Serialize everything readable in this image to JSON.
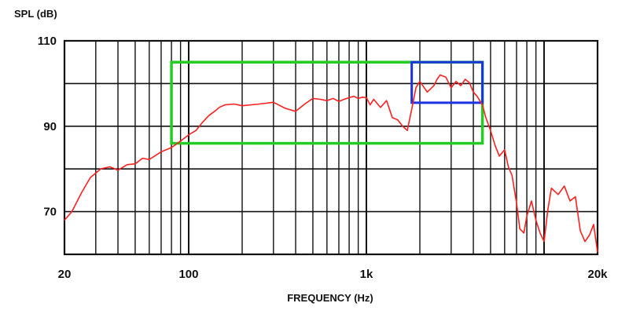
{
  "chart_data": {
    "type": "line",
    "title": "",
    "xlabel": "FREQUENCY (Hz)",
    "ylabel": "SPL (dB)",
    "x_scale": "log",
    "xlim": [
      20,
      20000
    ],
    "ylim": [
      60,
      110
    ],
    "grid": true,
    "x_ticks": [
      {
        "value": 20,
        "label": "20"
      },
      {
        "value": 100,
        "label": "100"
      },
      {
        "value": 1000,
        "label": "1k"
      },
      {
        "value": 20000,
        "label": "20k"
      }
    ],
    "y_ticks": [
      {
        "value": 110,
        "label": "110"
      },
      {
        "value": 90,
        "label": "90"
      },
      {
        "value": 70,
        "label": "70"
      }
    ],
    "colors": {
      "curve": "#ff2020",
      "grid": "#111111",
      "box_wide": "#22cc22",
      "box_narrow": "#1a33dd"
    },
    "series": [
      {
        "x": [
          20,
          22,
          25,
          28,
          32,
          36,
          40,
          45,
          50,
          55,
          60,
          70,
          80,
          90,
          100,
          110,
          120,
          130,
          140,
          150,
          160,
          180,
          200,
          250,
          300,
          350,
          400,
          450,
          500,
          550,
          600,
          650,
          700,
          750,
          800,
          850,
          900,
          950,
          1000,
          1050,
          1100,
          1200,
          1300,
          1400,
          1500,
          1600,
          1700,
          1800,
          1900,
          2000,
          2200,
          2400,
          2500,
          2600,
          2800,
          3000,
          3200,
          3400,
          3600,
          3800,
          4000,
          4200,
          4500,
          4700,
          5000,
          5300,
          5600,
          6000,
          6300,
          6600,
          7000,
          7300,
          7700,
          8000,
          8500,
          9000,
          9500,
          10000,
          10500,
          11000,
          12000,
          13000,
          14000,
          15000,
          16000,
          17000,
          18000,
          19000,
          20000
        ],
        "y": [
          68,
          70,
          74.5,
          78,
          80,
          80.5,
          79.7,
          81,
          81.2,
          82.5,
          82.2,
          84,
          85,
          86.5,
          88,
          89,
          91,
          92.5,
          93.5,
          94.5,
          95,
          95.2,
          94.8,
          95.2,
          95.6,
          94.2,
          93.5,
          95.2,
          96.5,
          96.3,
          96,
          96.5,
          95.8,
          96.3,
          96.7,
          97,
          96.5,
          96.8,
          96.7,
          95,
          96.3,
          94.4,
          96,
          92,
          91.5,
          90,
          89,
          94,
          99,
          100.5,
          98,
          99.5,
          101,
          102,
          101.5,
          99,
          100.5,
          99.5,
          101,
          100.2,
          98,
          97,
          95,
          92,
          89,
          85.5,
          83,
          84.5,
          80.5,
          78.5,
          72,
          66,
          65,
          69,
          72.5,
          68,
          65,
          63,
          70.5,
          75.5,
          74,
          76,
          72.5,
          73.5,
          65.5,
          63,
          64.5,
          67,
          60.5
        ]
      }
    ],
    "annotations": [
      {
        "type": "rect",
        "color": "green",
        "x_range": [
          80,
          4500
        ],
        "y_range": [
          86,
          105
        ]
      },
      {
        "type": "rect",
        "color": "blue",
        "x_range": [
          1800,
          4500
        ],
        "y_range": [
          95.5,
          105
        ]
      }
    ]
  }
}
